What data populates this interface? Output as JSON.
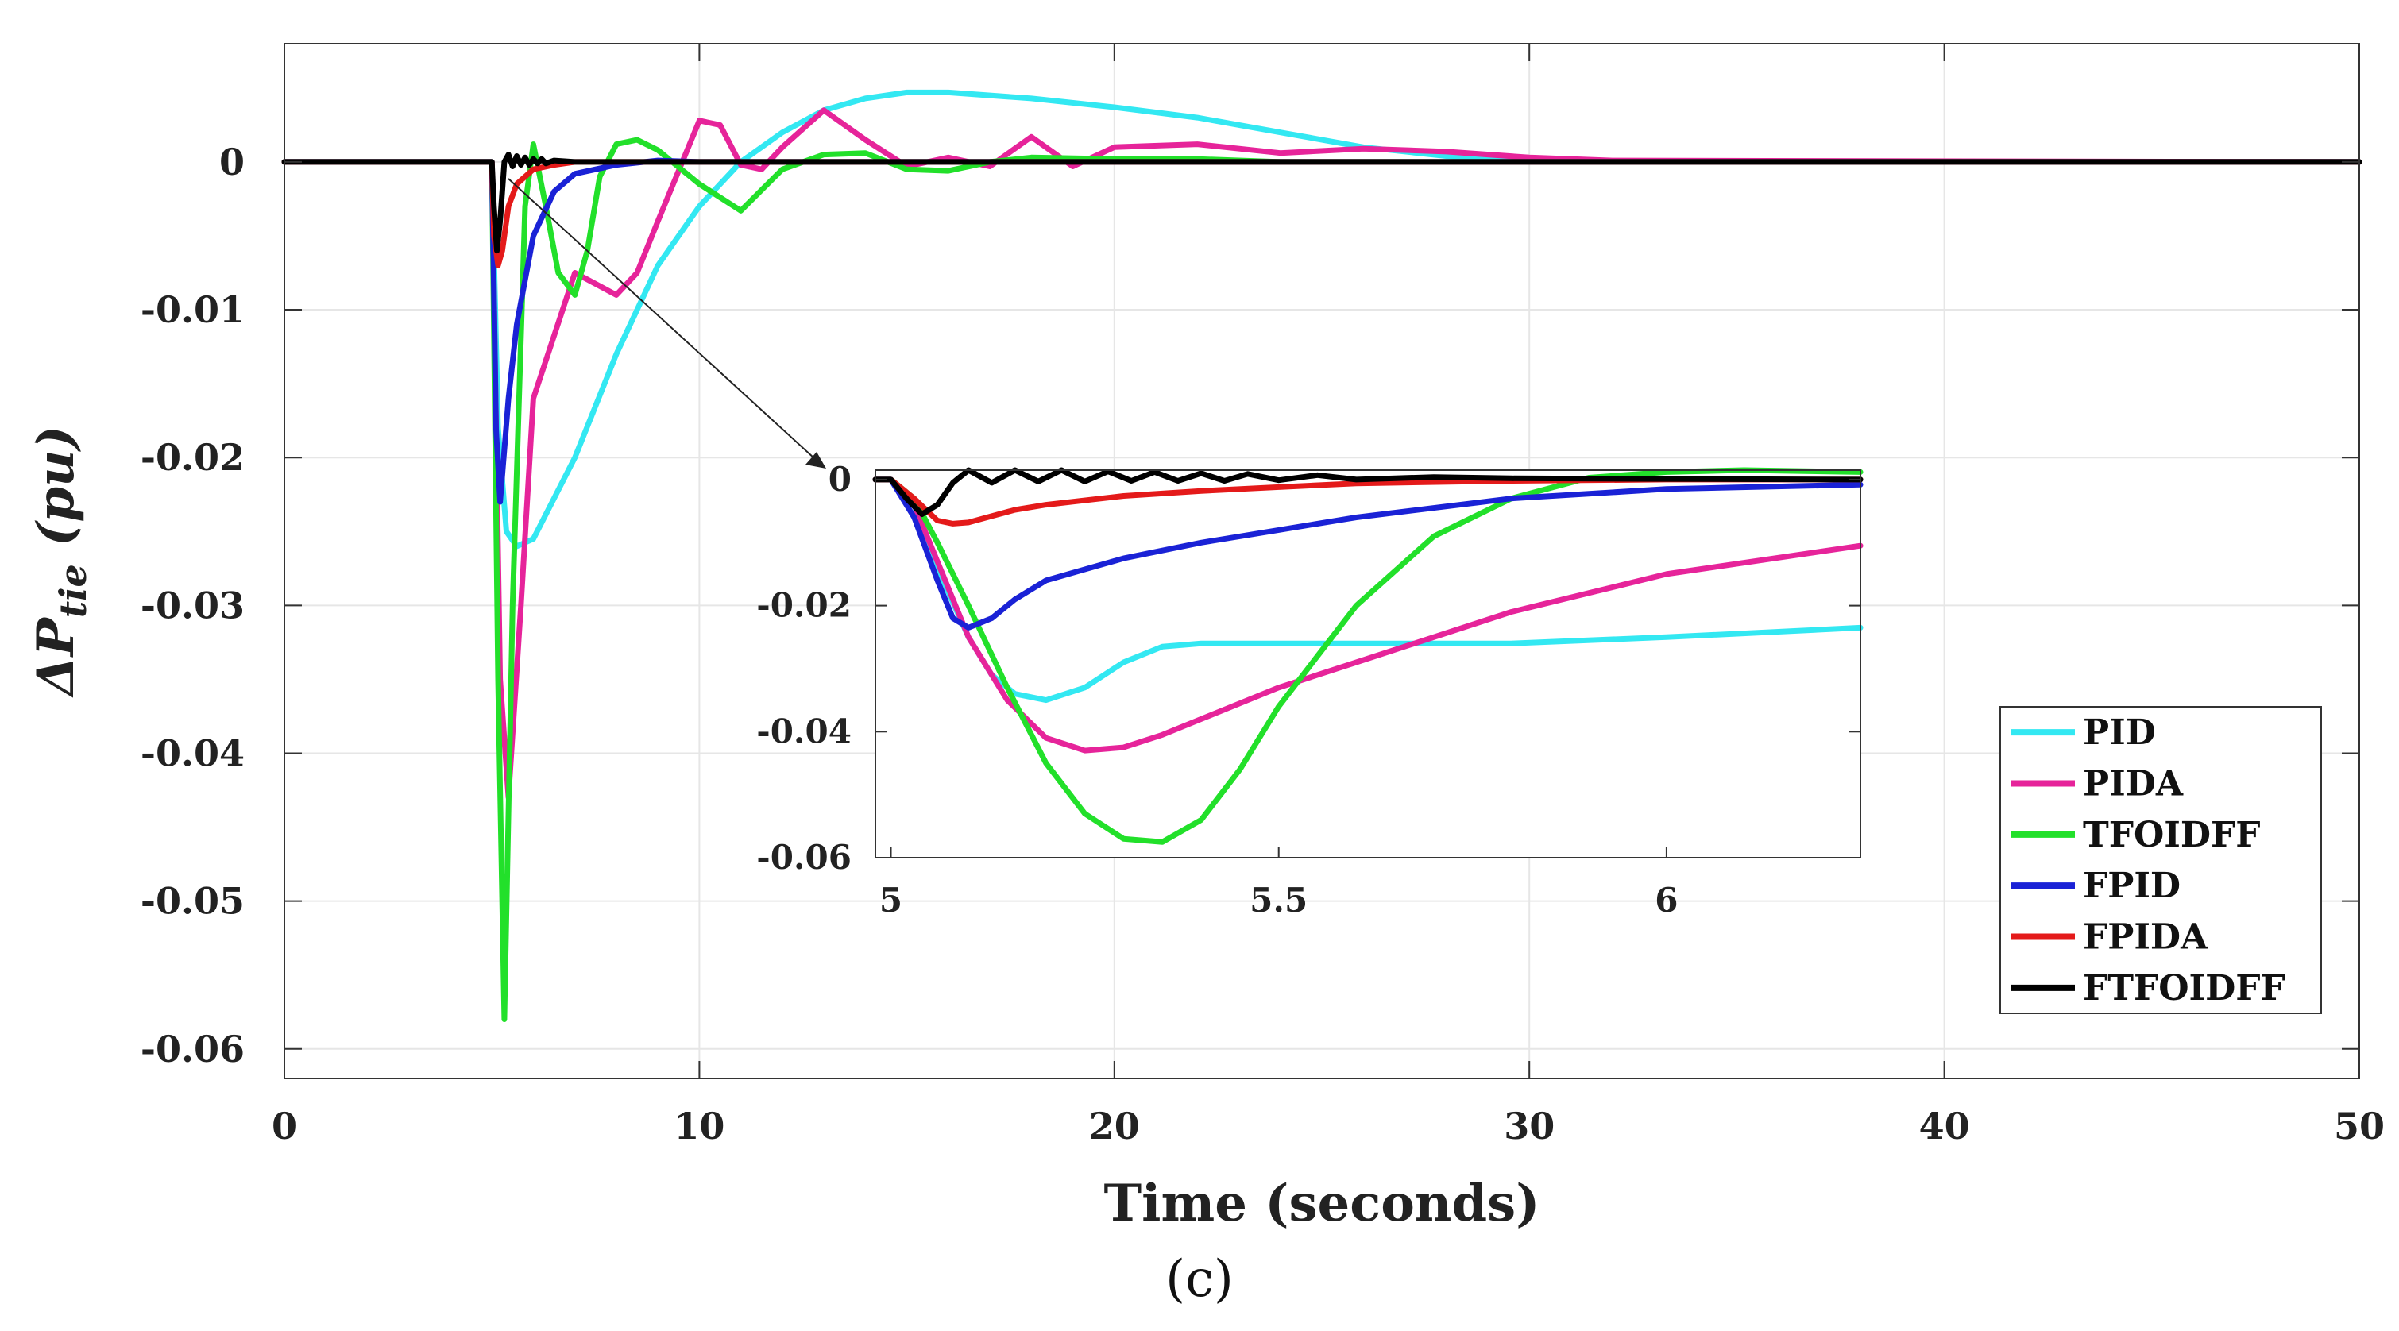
{
  "chart_data": {
    "type": "line",
    "title": "",
    "xlabel": "Time (seconds)",
    "ylabel": {
      "main": "ΔP",
      "subscript": "tie",
      "unit": " (pu)"
    },
    "caption": "(c)",
    "xlim": [
      0,
      50
    ],
    "ylim": [
      -0.062,
      0.008
    ],
    "xticks": [
      0,
      10,
      20,
      30,
      40,
      50
    ],
    "xtick_labels": [
      "0",
      "10",
      "20",
      "30",
      "40",
      "50"
    ],
    "yticks": [
      0,
      -0.01,
      -0.02,
      -0.03,
      -0.04,
      -0.05,
      -0.06
    ],
    "ytick_labels": [
      "0",
      "-0.01",
      "-0.02",
      "-0.03",
      "-0.04",
      "-0.05",
      "-0.06"
    ],
    "grid": true,
    "legend_position": "bottom-right",
    "series": [
      {
        "name": "PID",
        "color": "#33e8f2",
        "x": [
          0,
          5,
          5.15,
          5.35,
          5.6,
          6,
          7,
          8,
          9,
          10,
          11,
          12,
          13,
          14,
          15,
          16,
          18,
          20,
          22,
          24,
          26,
          28,
          30,
          35,
          50
        ],
        "y": [
          0,
          0,
          -0.018,
          -0.025,
          -0.026,
          -0.0255,
          -0.02,
          -0.013,
          -0.007,
          -0.003,
          0,
          0.002,
          0.0035,
          0.0043,
          0.0047,
          0.0047,
          0.0043,
          0.0037,
          0.003,
          0.002,
          0.001,
          0.0004,
          0.0001,
          0,
          0
        ]
      },
      {
        "name": "PIDA",
        "color": "#e6249a",
        "x": [
          0,
          5,
          5.2,
          5.4,
          5.7,
          6,
          7,
          8,
          8.5,
          9,
          10,
          10.5,
          11,
          11.5,
          12,
          13,
          14,
          15,
          16,
          17,
          18,
          19,
          20,
          22,
          24,
          26,
          28,
          30,
          32,
          50
        ],
        "y": [
          0,
          0,
          -0.035,
          -0.043,
          -0.03,
          -0.016,
          -0.0075,
          -0.009,
          -0.0075,
          -0.004,
          0.0028,
          0.0025,
          -0.0002,
          -0.0005,
          0.001,
          0.0035,
          0.0015,
          -0.0003,
          0.0003,
          -0.0003,
          0.0017,
          -0.0003,
          0.001,
          0.0012,
          0.0006,
          0.0009,
          0.0007,
          0.0003,
          0.0001,
          0
        ]
      },
      {
        "name": "TFOIDFF",
        "color": "#22e02a",
        "x": [
          0,
          5,
          5.15,
          5.3,
          5.5,
          5.8,
          6,
          6.3,
          6.6,
          7,
          7.3,
          7.6,
          8,
          8.5,
          9,
          10,
          11,
          12,
          13,
          14,
          15,
          16,
          17,
          18,
          20,
          22,
          24,
          50
        ],
        "y": [
          0,
          0,
          -0.035,
          -0.058,
          -0.03,
          -0.003,
          0.0012,
          -0.003,
          -0.0075,
          -0.009,
          -0.006,
          -0.001,
          0.0012,
          0.0015,
          0.0008,
          -0.0015,
          -0.0033,
          -0.0005,
          0.0005,
          0.0006,
          -0.0005,
          -0.0006,
          0,
          0.0003,
          0.0002,
          0.0002,
          0,
          0
        ]
      },
      {
        "name": "FPID",
        "color": "#1a22d6",
        "x": [
          0,
          5,
          5.1,
          5.2,
          5.4,
          5.6,
          6,
          6.5,
          7,
          8,
          9,
          10,
          50
        ],
        "y": [
          0,
          0,
          -0.018,
          -0.023,
          -0.016,
          -0.011,
          -0.005,
          -0.002,
          -0.0008,
          -0.0002,
          0.0001,
          0,
          0
        ]
      },
      {
        "name": "FPIDA",
        "color": "#e41a1a",
        "x": [
          0,
          5,
          5.05,
          5.15,
          5.25,
          5.4,
          5.6,
          6,
          6.5,
          7,
          8,
          50
        ],
        "y": [
          0,
          0,
          -0.005,
          -0.007,
          -0.006,
          -0.003,
          -0.0015,
          -0.0005,
          -0.0002,
          0,
          0,
          0
        ]
      },
      {
        "name": "FTFOIDFF",
        "color": "#000000",
        "x": [
          0,
          5,
          5.05,
          5.12,
          5.2,
          5.3,
          5.4,
          5.5,
          5.6,
          5.7,
          5.8,
          5.9,
          6,
          6.1,
          6.2,
          6.3,
          6.5,
          7,
          50
        ],
        "y": [
          0,
          0,
          -0.003,
          -0.006,
          -0.004,
          0,
          0.0005,
          -0.0003,
          0.0004,
          -0.0002,
          0.0003,
          -0.0002,
          0.0002,
          -0.0001,
          0.0002,
          -0.0001,
          0.0001,
          0,
          0
        ]
      }
    ],
    "inset": {
      "xlim": [
        4.98,
        6.25
      ],
      "ylim": [
        -0.06,
        0.0015
      ],
      "xticks": [
        5,
        5.5,
        6
      ],
      "xtick_labels": [
        "5",
        "5.5",
        "6"
      ],
      "yticks": [
        0,
        -0.02,
        -0.04,
        -0.06
      ],
      "ytick_labels": [
        "0",
        "-0.02",
        "-0.04",
        "-0.06"
      ],
      "series": [
        {
          "name": "PID",
          "x": [
            4.98,
            5,
            5.03,
            5.06,
            5.1,
            5.13,
            5.16,
            5.2,
            5.25,
            5.3,
            5.35,
            5.4,
            5.5,
            5.6,
            5.8,
            6,
            6.25
          ],
          "y": [
            0,
            0,
            -0.004,
            -0.014,
            -0.025,
            -0.031,
            -0.034,
            -0.035,
            -0.033,
            -0.029,
            -0.0265,
            -0.026,
            -0.026,
            -0.026,
            -0.026,
            -0.025,
            -0.0235
          ]
        },
        {
          "name": "PIDA",
          "x": [
            4.98,
            5,
            5.03,
            5.06,
            5.1,
            5.15,
            5.2,
            5.25,
            5.3,
            5.35,
            5.4,
            5.5,
            5.6,
            5.8,
            6,
            6.25
          ],
          "y": [
            0,
            0,
            -0.004,
            -0.013,
            -0.025,
            -0.035,
            -0.041,
            -0.043,
            -0.0425,
            -0.0405,
            -0.038,
            -0.033,
            -0.029,
            -0.021,
            -0.015,
            -0.0105
          ]
        },
        {
          "name": "TFOIDFF",
          "x": [
            4.98,
            5,
            5.03,
            5.06,
            5.1,
            5.15,
            5.2,
            5.25,
            5.3,
            5.35,
            5.4,
            5.45,
            5.5,
            5.6,
            5.7,
            5.8,
            5.9,
            6,
            6.1,
            6.25
          ],
          "y": [
            0,
            0,
            -0.003,
            -0.01,
            -0.02,
            -0.033,
            -0.045,
            -0.053,
            -0.057,
            -0.0575,
            -0.054,
            -0.046,
            -0.036,
            -0.02,
            -0.009,
            -0.003,
            0.0003,
            0.0012,
            0.0015,
            0.0012
          ]
        },
        {
          "name": "FPID",
          "x": [
            4.98,
            5,
            5.03,
            5.06,
            5.08,
            5.1,
            5.13,
            5.16,
            5.2,
            5.3,
            5.4,
            5.5,
            5.6,
            5.8,
            6,
            6.25
          ],
          "y": [
            0,
            0,
            -0.006,
            -0.016,
            -0.022,
            -0.0235,
            -0.022,
            -0.019,
            -0.016,
            -0.0125,
            -0.01,
            -0.008,
            -0.006,
            -0.003,
            -0.0015,
            -0.0008
          ]
        },
        {
          "name": "FPIDA",
          "x": [
            4.98,
            5,
            5.03,
            5.06,
            5.08,
            5.1,
            5.13,
            5.16,
            5.2,
            5.3,
            5.4,
            5.5,
            5.6,
            5.8,
            6,
            6.25
          ],
          "y": [
            0,
            0,
            -0.003,
            -0.0065,
            -0.007,
            -0.0068,
            -0.0058,
            -0.0048,
            -0.004,
            -0.0026,
            -0.0018,
            -0.0012,
            -0.0006,
            -0.0002,
            0,
            0
          ]
        },
        {
          "name": "FTFOIDFF",
          "x": [
            4.98,
            5,
            5.02,
            5.04,
            5.06,
            5.08,
            5.1,
            5.13,
            5.16,
            5.19,
            5.22,
            5.25,
            5.28,
            5.31,
            5.34,
            5.37,
            5.4,
            5.43,
            5.46,
            5.5,
            5.55,
            5.6,
            5.7,
            5.8,
            6,
            6.25
          ],
          "y": [
            0,
            0,
            -0.003,
            -0.0055,
            -0.004,
            -0.0005,
            0.0015,
            -0.0005,
            0.0015,
            -0.0003,
            0.0015,
            -0.0003,
            0.0013,
            -0.0002,
            0.0012,
            -0.0002,
            0.001,
            -0.0002,
            0.0009,
            -0.0001,
            0.0007,
            0,
            0.0004,
            0.0002,
            0.0001,
            0
          ]
        }
      ]
    }
  }
}
